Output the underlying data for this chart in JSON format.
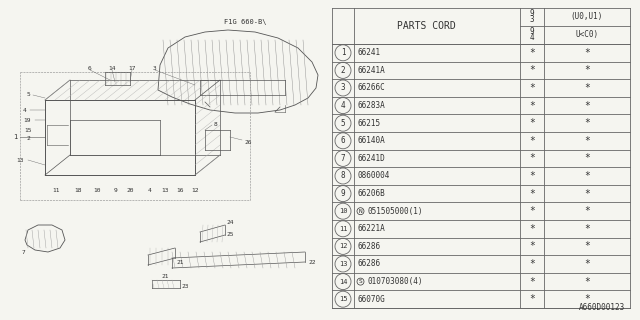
{
  "bg_color": "#f5f5f0",
  "title_code": "A660D00123",
  "table": {
    "rows": [
      {
        "num": "1",
        "part": "66241",
        "c2": "*",
        "c3": "*"
      },
      {
        "num": "2",
        "part": "66241A",
        "c2": "*",
        "c3": "*"
      },
      {
        "num": "3",
        "part": "66266C",
        "c2": "*",
        "c3": "*"
      },
      {
        "num": "4",
        "part": "66283A",
        "c2": "*",
        "c3": "*"
      },
      {
        "num": "5",
        "part": "66215",
        "c2": "*",
        "c3": "*"
      },
      {
        "num": "6",
        "part": "66140A",
        "c2": "*",
        "c3": "*"
      },
      {
        "num": "7",
        "part": "66241D",
        "c2": "*",
        "c3": "*"
      },
      {
        "num": "8",
        "part": "0860004",
        "c2": "*",
        "c3": "*"
      },
      {
        "num": "9",
        "part": "66206B",
        "c2": "*",
        "c3": "*"
      },
      {
        "num": "10",
        "part": "N051505000(1)",
        "c2": "*",
        "c3": "*"
      },
      {
        "num": "11",
        "part": "66221A",
        "c2": "*",
        "c3": "*"
      },
      {
        "num": "12",
        "part": "66286",
        "c2": "*",
        "c3": "*"
      },
      {
        "num": "13",
        "part": "66286",
        "c2": "*",
        "c3": "*"
      },
      {
        "num": "14",
        "part": "S010703080(4)",
        "c2": "*",
        "c3": "*"
      },
      {
        "num": "15",
        "part": "66070G",
        "c2": "*",
        "c3": "*"
      }
    ]
  },
  "line_color": "#666666",
  "text_color": "#333333"
}
